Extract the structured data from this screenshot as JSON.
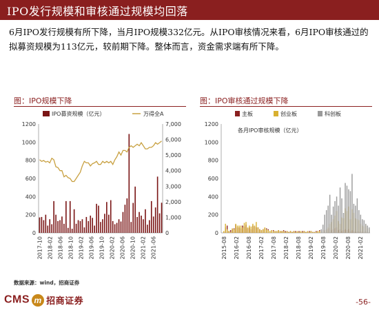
{
  "header": {
    "title": "IPO发行规模和审核通过规模均回落"
  },
  "paragraph": "6月IPO发行规模有所下降，当月IPO规模332亿元。从IPO审核情况来看，6月IPO审核通过的拟募资规模为113亿元，较前期下降。整体而言，资金需求端有所下降。",
  "chart_data": [
    {
      "type": "bar",
      "panel_title": "图：IPO规模下降",
      "title": "",
      "series": [
        {
          "name": "IPO募资规模（亿元）",
          "kind": "bar",
          "axis": "left",
          "color": "#7a1515",
          "values": [
            170,
            175,
            140,
            200,
            80,
            150,
            95,
            350,
            200,
            130,
            140,
            180,
            100,
            350,
            55,
            350,
            45,
            260,
            100,
            140,
            130,
            150,
            60,
            175,
            130,
            190,
            165,
            80,
            320,
            300,
            120,
            150,
            210,
            340,
            200,
            360,
            130,
            95,
            110,
            150,
            125,
            230,
            310,
            380,
            1090,
            120,
            330,
            510,
            175,
            230,
            190,
            150,
            260,
            90,
            140,
            350,
            180,
            280,
            620,
            215,
            332
          ]
        },
        {
          "name": "万得全A",
          "kind": "line",
          "axis": "right",
          "color": "#c8a040",
          "values": [
            4700,
            4600,
            4650,
            4550,
            4600,
            4500,
            4800,
            4700,
            4250,
            4200,
            4000,
            4000,
            3600,
            3700,
            3550,
            3500,
            3300,
            3300,
            3500,
            3700,
            3900,
            4300,
            4600,
            4500,
            4500,
            4300,
            4450,
            4500,
            4600,
            4400,
            4400,
            4600,
            4500,
            4600,
            4500,
            4600,
            4400,
            4700,
            4900,
            5200,
            5000,
            5300,
            5300,
            5200,
            5500,
            5600,
            5500,
            5600,
            5700,
            5600,
            5800,
            5600,
            5400,
            5400,
            5500,
            5500,
            5600,
            5800,
            5700,
            5800,
            5900
          ]
        }
      ],
      "ylim_left": [
        0,
        1200
      ],
      "ylim_right": [
        0,
        7000
      ],
      "yticks_left": [
        "0",
        "200",
        "400",
        "600",
        "800",
        "1000",
        "1200"
      ],
      "yticks_right": [
        "0",
        "1,000",
        "2,000",
        "3,000",
        "4,000",
        "5,000",
        "6,000",
        "7,000"
      ],
      "xticks": [
        "2017-10",
        "2018-02",
        "2018-06",
        "2018-10",
        "2019-02",
        "2019-06",
        "2019-10",
        "2020-02",
        "2020-06",
        "2020-10",
        "2021-02",
        "2021-06"
      ],
      "legend_position": "top"
    },
    {
      "type": "bar",
      "panel_title": "图：IPO审核通过规模下降",
      "title": "各月IPO审核规模（亿元）",
      "series": [
        {
          "name": "主板",
          "color": "#8a1f1f",
          "values": [
            0,
            10,
            60,
            80,
            20,
            30,
            40,
            50,
            90,
            60,
            60,
            50,
            80,
            70,
            90,
            50,
            60,
            40,
            80,
            70,
            60,
            60,
            40,
            30,
            40,
            50,
            50,
            40,
            20,
            30,
            30,
            20,
            20,
            30,
            20,
            20,
            30,
            20,
            20,
            10,
            20,
            10,
            20,
            20,
            10,
            20,
            10,
            20,
            20,
            10,
            10,
            20,
            20,
            10,
            10,
            20,
            20,
            30,
            20,
            30,
            20,
            30,
            40,
            50,
            30,
            40,
            50,
            60,
            30,
            40,
            20,
            30,
            40,
            30,
            40,
            20,
            30,
            20,
            10,
            20,
            10,
            20,
            10,
            20,
            20,
            10,
            20
          ]
        },
        {
          "name": "创业板",
          "color": "#d8b030",
          "values": [
            0,
            20,
            100,
            40,
            20,
            10,
            50,
            40,
            100,
            80,
            80,
            80,
            60,
            110,
            120,
            60,
            80,
            70,
            100,
            80,
            120,
            60,
            40,
            30,
            40,
            60,
            40,
            30,
            20,
            30,
            20,
            20,
            20,
            30,
            20,
            20,
            20,
            10,
            20,
            10,
            20,
            10,
            20,
            10,
            20,
            10,
            20,
            10,
            20,
            10,
            20,
            10,
            20,
            10,
            10,
            10,
            20,
            20,
            20,
            20,
            30,
            40,
            60,
            100,
            120,
            150,
            190,
            240,
            130,
            100,
            170,
            160,
            270,
            240,
            290,
            150,
            260,
            220,
            160,
            150,
            140,
            100,
            80,
            70,
            90,
            50,
            40
          ]
        },
        {
          "name": "科创板",
          "color": "#9a9a9a",
          "values": [
            0,
            0,
            0,
            0,
            0,
            0,
            0,
            0,
            0,
            0,
            0,
            0,
            0,
            0,
            0,
            0,
            0,
            0,
            0,
            0,
            0,
            0,
            0,
            0,
            0,
            0,
            0,
            0,
            0,
            0,
            0,
            0,
            0,
            0,
            0,
            0,
            0,
            0,
            0,
            0,
            0,
            0,
            0,
            0,
            0,
            0,
            0,
            0,
            0,
            0,
            0,
            0,
            0,
            0,
            0,
            0,
            0,
            0,
            40,
            90,
            200,
            250,
            300,
            420,
            200,
            290,
            350,
            400,
            300,
            500,
            380,
            220,
            550,
            520,
            480,
            460,
            650,
            320,
            300,
            380,
            250,
            200,
            150,
            140,
            100,
            80,
            60
          ]
        }
      ],
      "ylim": [
        0,
        1200
      ],
      "yticks": [
        "0",
        "200",
        "400",
        "600",
        "800",
        "1000",
        "1200"
      ],
      "xticks": [
        "2015-08",
        "2016-02",
        "2016-08",
        "2017-02",
        "2017-08",
        "2018-02",
        "2018-08",
        "2019-02",
        "2019-08",
        "2020-02",
        "2020-08",
        "2021-02"
      ],
      "legend_position": "top"
    }
  ],
  "source": "数据来源：wind，招商证券",
  "footer": {
    "brand": "CMS",
    "brand_mark": "m",
    "brand_cn": "招商证券",
    "page": "-56-"
  },
  "colors": {
    "accent": "#8a1f1f",
    "bar_left": "#7a1515",
    "line_gold": "#c8a040"
  }
}
